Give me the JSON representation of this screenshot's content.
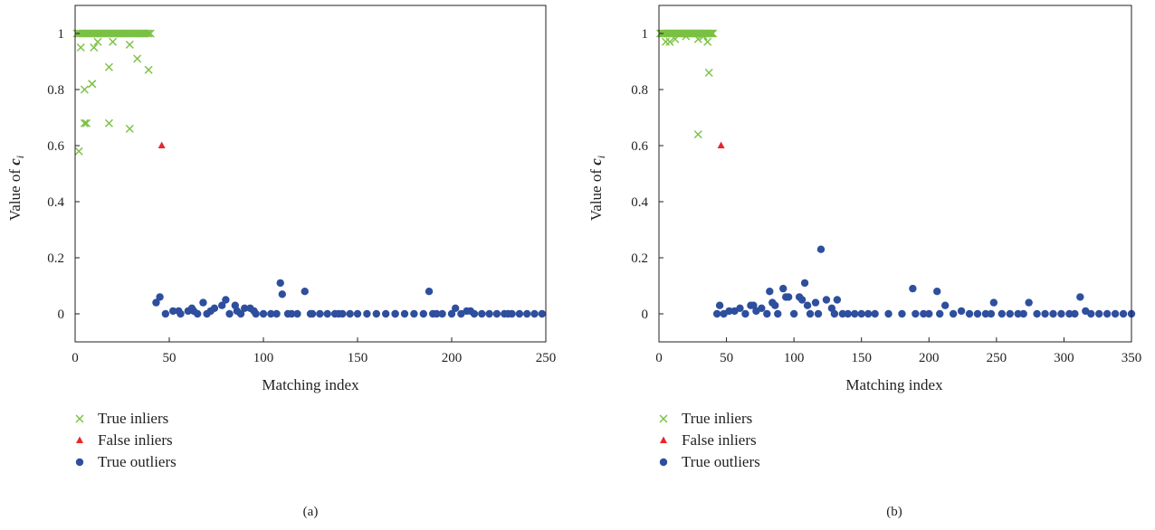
{
  "colors": {
    "inlier": "#7ac143",
    "false_inlier": "#e8262d",
    "outlier": "#2e4f9e",
    "axis": "#231f20"
  },
  "chart_data": [
    {
      "type": "scatter",
      "panel_label": "(a)",
      "xlabel": "Matching index",
      "ylabel_main": "Value of ",
      "ylabel_var": "c",
      "ylabel_sub": "i",
      "xlim": [
        0,
        250
      ],
      "ylim": [
        -0.1,
        1.1
      ],
      "xticks": [
        0,
        50,
        100,
        150,
        200,
        250
      ],
      "yticks": [
        0,
        0.2,
        0.4,
        0.6,
        0.8,
        1
      ],
      "ytick_labels": [
        "0",
        "0.2",
        "0.4",
        "0.6",
        "0.8",
        "1"
      ],
      "legend_position": "bottom-left",
      "series": [
        {
          "name": "True inliers",
          "marker": "x",
          "x": [
            1,
            2,
            3,
            4,
            5,
            6,
            7,
            8,
            9,
            10,
            11,
            12,
            13,
            14,
            15,
            16,
            17,
            18,
            19,
            20,
            21,
            22,
            23,
            24,
            25,
            26,
            27,
            28,
            29,
            30,
            31,
            32,
            33,
            34,
            35,
            36,
            37,
            38,
            39,
            40,
            2,
            3,
            5,
            6,
            9,
            10,
            12,
            18,
            20,
            29,
            33,
            39,
            5,
            9,
            18,
            29
          ],
          "y": [
            1,
            1,
            1,
            1,
            1,
            1,
            1,
            1,
            1,
            1,
            1,
            1,
            1,
            1,
            1,
            1,
            1,
            1,
            1,
            1,
            1,
            1,
            1,
            1,
            1,
            1,
            1,
            1,
            1,
            1,
            1,
            1,
            1,
            1,
            1,
            1,
            1,
            1,
            1,
            1,
            0.58,
            0.95,
            0.8,
            0.68,
            0.82,
            0.95,
            0.97,
            0.88,
            0.97,
            0.96,
            0.91,
            0.87,
            0.68,
            0.82,
            0.68,
            0.66
          ]
        },
        {
          "name": "False inliers",
          "marker": "triangle",
          "x": [
            46
          ],
          "y": [
            0.6
          ]
        },
        {
          "name": "True outliers",
          "marker": "circle",
          "x": [
            43,
            45,
            48,
            52,
            56,
            60,
            62,
            65,
            68,
            70,
            74,
            78,
            80,
            82,
            85,
            88,
            90,
            93,
            96,
            100,
            104,
            107,
            109,
            110,
            113,
            118,
            122,
            126,
            130,
            134,
            138,
            142,
            146,
            150,
            155,
            160,
            165,
            170,
            175,
            180,
            185,
            188,
            190,
            195,
            200,
            202,
            205,
            208,
            212,
            216,
            220,
            224,
            228,
            232,
            236,
            240,
            244,
            248,
            55,
            63,
            72,
            86,
            95,
            115,
            125,
            140,
            170,
            192,
            210,
            230
          ],
          "y": [
            0.04,
            0.06,
            0.0,
            0.01,
            0.0,
            0.01,
            0.02,
            0.0,
            0.04,
            0.0,
            0.02,
            0.03,
            0.05,
            0.0,
            0.03,
            0.0,
            0.02,
            0.02,
            0.0,
            0.0,
            0.0,
            0.0,
            0.11,
            0.07,
            0.0,
            0.0,
            0.08,
            0.0,
            0.0,
            0.0,
            0.0,
            0.0,
            0.0,
            0.0,
            0.0,
            0.0,
            0.0,
            0.0,
            0.0,
            0.0,
            0.0,
            0.08,
            0.0,
            0.0,
            0.0,
            0.02,
            0.0,
            0.01,
            0.0,
            0.0,
            0.0,
            0.0,
            0.0,
            0.0,
            0.0,
            0.0,
            0.0,
            0.0,
            0.01,
            0.01,
            0.01,
            0.01,
            0.01,
            0.0,
            0.0,
            0.0,
            0.0,
            0.0,
            0.01,
            0.0
          ]
        }
      ]
    },
    {
      "type": "scatter",
      "panel_label": "(b)",
      "xlabel": "Matching index",
      "ylabel_main": "Value of ",
      "ylabel_var": "c",
      "ylabel_sub": "i",
      "xlim": [
        0,
        350
      ],
      "ylim": [
        -0.1,
        1.1
      ],
      "xticks": [
        0,
        50,
        100,
        150,
        200,
        250,
        300,
        350
      ],
      "yticks": [
        0,
        0.2,
        0.4,
        0.6,
        0.8,
        1
      ],
      "ytick_labels": [
        "0",
        "0.2",
        "0.4",
        "0.6",
        "0.8",
        "1"
      ],
      "legend_position": "bottom-left",
      "series": [
        {
          "name": "True inliers",
          "marker": "x",
          "x": [
            1,
            2,
            3,
            4,
            5,
            6,
            7,
            8,
            9,
            10,
            11,
            12,
            13,
            14,
            15,
            16,
            17,
            18,
            19,
            20,
            21,
            22,
            23,
            24,
            25,
            26,
            27,
            28,
            29,
            30,
            31,
            32,
            33,
            34,
            35,
            36,
            37,
            38,
            39,
            40,
            5,
            8,
            12,
            20,
            29,
            33,
            36,
            29,
            37
          ],
          "y": [
            1,
            1,
            1,
            1,
            1,
            1,
            1,
            1,
            1,
            1,
            1,
            1,
            1,
            1,
            1,
            1,
            1,
            1,
            1,
            1,
            1,
            1,
            1,
            1,
            1,
            1,
            1,
            1,
            1,
            1,
            1,
            1,
            1,
            1,
            1,
            1,
            1,
            1,
            1,
            1,
            0.97,
            0.97,
            0.98,
            0.99,
            0.98,
            0.99,
            0.97,
            0.64,
            0.86
          ]
        },
        {
          "name": "False inliers",
          "marker": "triangle",
          "x": [
            46
          ],
          "y": [
            0.6
          ]
        },
        {
          "name": "True outliers",
          "marker": "circle",
          "x": [
            43,
            45,
            48,
            52,
            56,
            60,
            64,
            68,
            70,
            72,
            76,
            80,
            82,
            84,
            86,
            88,
            92,
            94,
            96,
            100,
            104,
            106,
            108,
            110,
            112,
            116,
            118,
            120,
            124,
            128,
            130,
            132,
            136,
            140,
            145,
            150,
            155,
            160,
            170,
            180,
            188,
            190,
            196,
            200,
            206,
            208,
            212,
            218,
            224,
            230,
            236,
            242,
            246,
            248,
            254,
            260,
            266,
            270,
            274,
            280,
            286,
            292,
            298,
            304,
            308,
            312,
            316,
            320,
            326,
            332,
            338,
            344,
            350
          ],
          "y": [
            0.0,
            0.03,
            0.0,
            0.01,
            0.01,
            0.02,
            0.0,
            0.03,
            0.03,
            0.01,
            0.02,
            0.0,
            0.08,
            0.04,
            0.03,
            0.0,
            0.09,
            0.06,
            0.06,
            0.0,
            0.06,
            0.05,
            0.11,
            0.03,
            0.0,
            0.04,
            0.0,
            0.23,
            0.05,
            0.02,
            0.0,
            0.05,
            0.0,
            0.0,
            0.0,
            0.0,
            0.0,
            0.0,
            0.0,
            0.0,
            0.09,
            0.0,
            0.0,
            0.0,
            0.08,
            0.0,
            0.03,
            0.0,
            0.01,
            0.0,
            0.0,
            0.0,
            0.0,
            0.04,
            0.0,
            0.0,
            0.0,
            0.0,
            0.04,
            0.0,
            0.0,
            0.0,
            0.0,
            0.0,
            0.0,
            0.06,
            0.01,
            0.0,
            0.0,
            0.0,
            0.0,
            0.0,
            0.0
          ]
        }
      ]
    }
  ]
}
